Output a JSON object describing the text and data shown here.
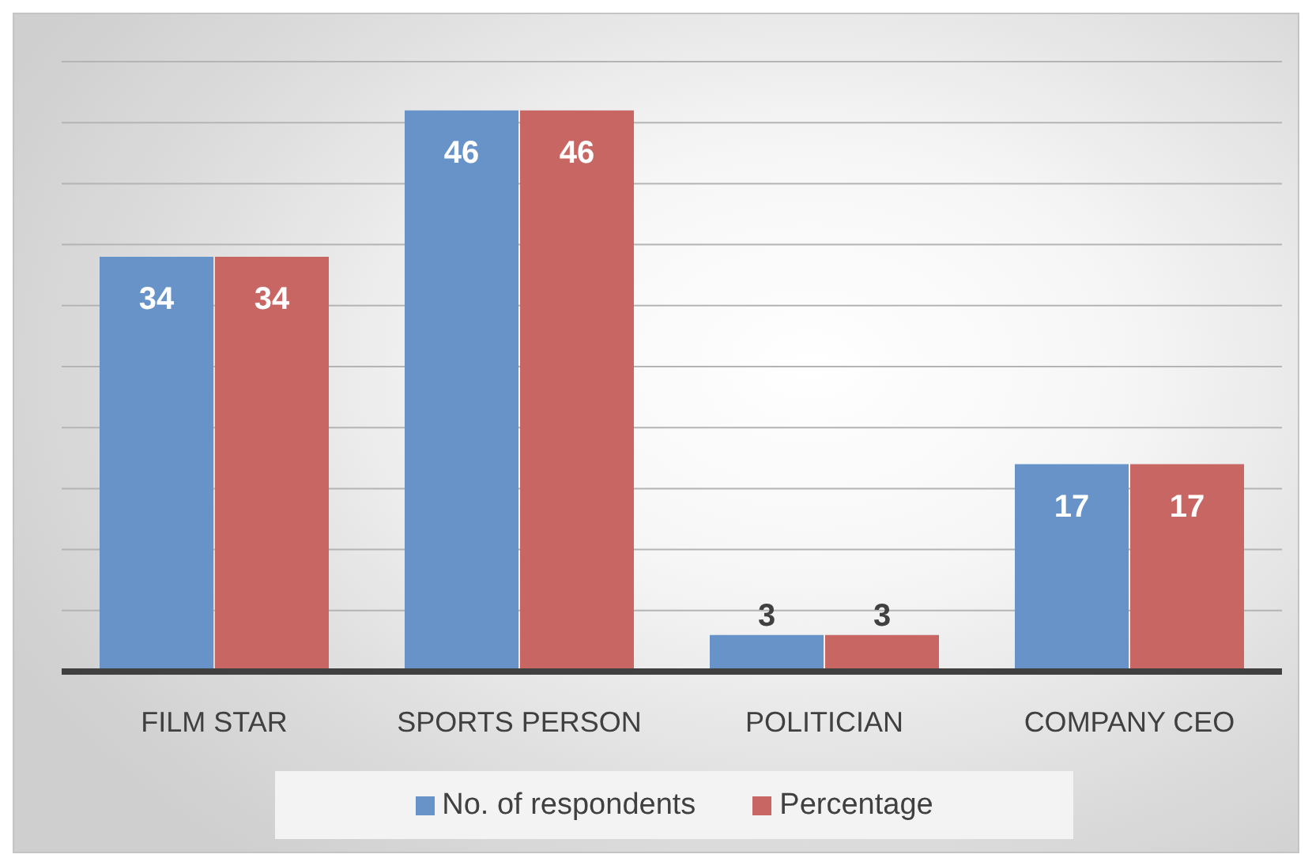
{
  "chart_data": {
    "type": "bar",
    "categories": [
      "FILM STAR",
      "SPORTS PERSON",
      "POLITICIAN",
      "COMPANY CEO"
    ],
    "series": [
      {
        "name": "No. of respondents",
        "color": "#6793c8",
        "values": [
          34,
          46,
          3,
          17
        ]
      },
      {
        "name": "Percentage",
        "color": "#c86663",
        "values": [
          34,
          46,
          3,
          17
        ]
      }
    ],
    "tick_labels": "x",
    "grid": "y",
    "legend": "bottom",
    "data_labels": true
  }
}
